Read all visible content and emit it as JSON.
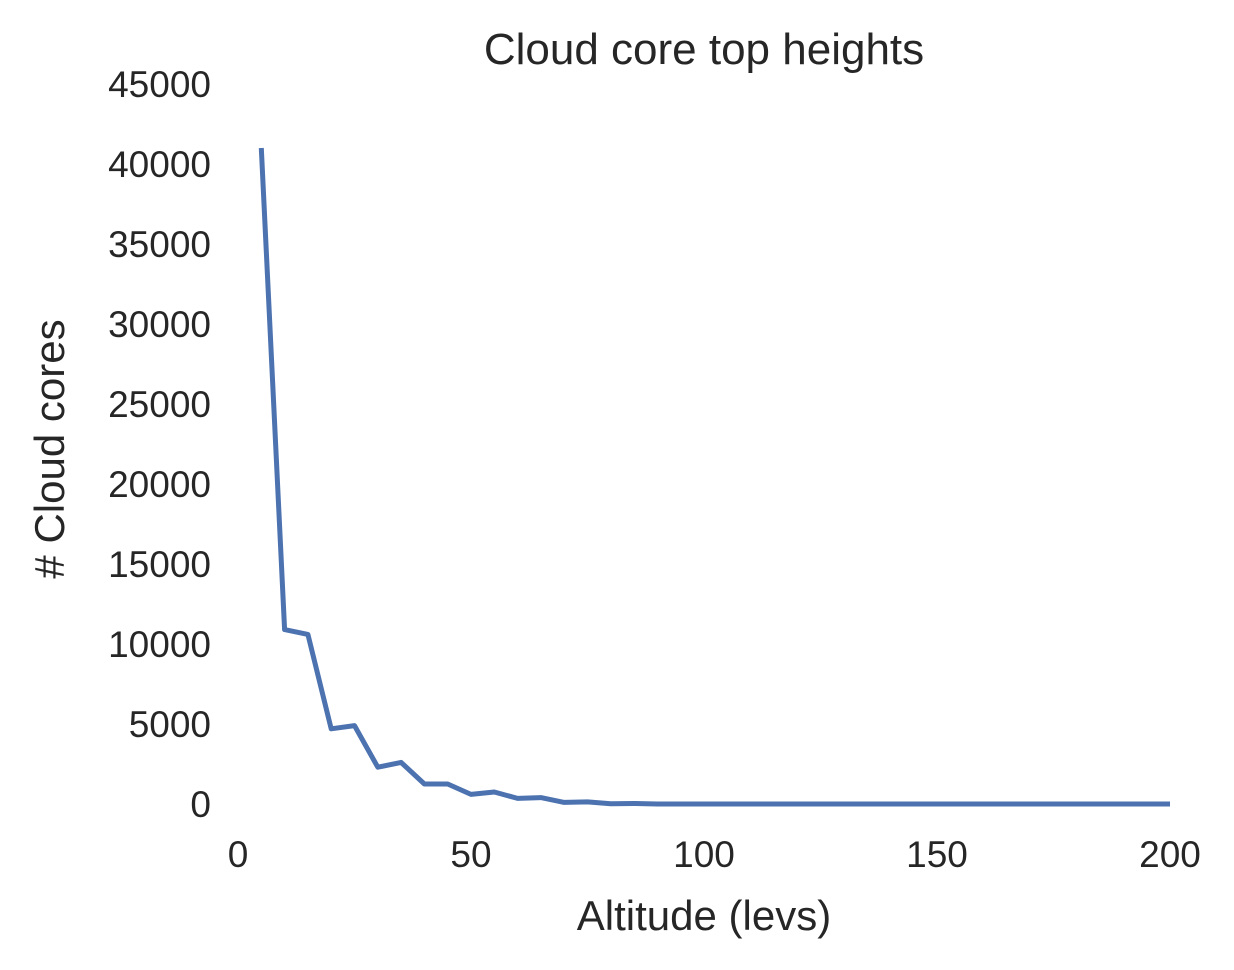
{
  "chart_data": {
    "type": "line",
    "title": "Cloud core top heights",
    "xlabel": "Altitude (levs)",
    "ylabel": "# Cloud cores",
    "xlim": [
      0,
      200
    ],
    "ylim": [
      0,
      45000
    ],
    "xticks": [
      0,
      50,
      100,
      150,
      200
    ],
    "yticks": [
      0,
      5000,
      10000,
      15000,
      20000,
      25000,
      30000,
      35000,
      40000,
      45000
    ],
    "grid": false,
    "series": [
      {
        "color": "#4c72b0",
        "x": [
          5,
          10,
          15,
          20,
          25,
          30,
          35,
          40,
          45,
          50,
          55,
          60,
          65,
          70,
          75,
          80,
          85,
          90,
          95,
          100,
          105,
          110,
          115,
          120,
          125,
          130,
          135,
          140,
          145,
          150,
          155,
          160,
          165,
          170,
          175,
          180,
          185,
          190,
          195,
          200
        ],
        "y": [
          41000,
          10900,
          10600,
          4700,
          4900,
          2300,
          2600,
          1250,
          1250,
          600,
          750,
          350,
          400,
          100,
          130,
          10,
          30,
          0,
          0,
          0,
          0,
          0,
          0,
          0,
          0,
          0,
          0,
          0,
          0,
          0,
          0,
          0,
          0,
          0,
          0,
          0,
          0,
          0,
          0,
          0
        ]
      }
    ]
  }
}
